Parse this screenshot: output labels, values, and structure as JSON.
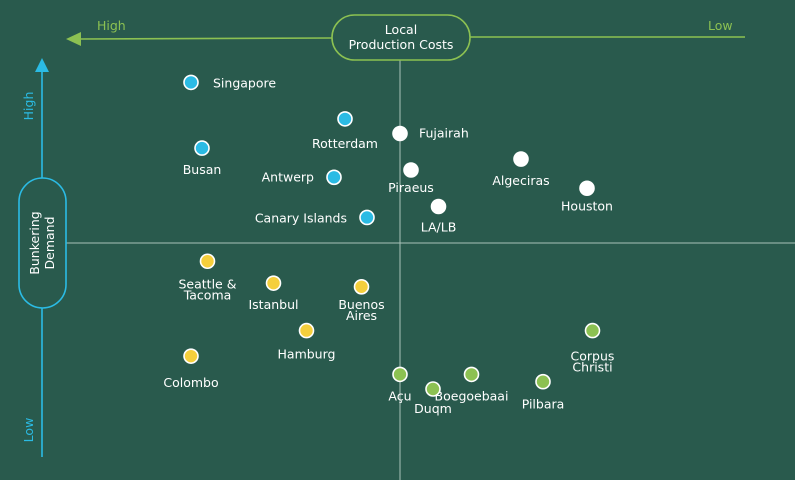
{
  "chart_data": {
    "type": "scatter",
    "title": "",
    "x_axis": {
      "label_lines": [
        "Local",
        "Production Costs"
      ],
      "left_end": "High",
      "right_end": "Low",
      "direction": "decreasing-to-the-right",
      "range": [
        0,
        10
      ]
    },
    "y_axis": {
      "label_lines": [
        "Bunkering",
        "Demand"
      ],
      "top_end": "High",
      "bottom_end": "Low",
      "range": [
        0,
        10
      ]
    },
    "quadrant_lines": "center",
    "legend": "none",
    "series": [
      {
        "color": "#2bbbe4",
        "points": [
          {
            "label": "Singapore",
            "x": 1.2,
            "y": 9.4
          },
          {
            "label": "Rotterdam",
            "x": 4.0,
            "y": 8.4
          },
          {
            "label": "Busan",
            "x": 1.4,
            "y": 7.6
          },
          {
            "label": "Antwerp",
            "x": 3.8,
            "y": 6.8
          },
          {
            "label": "Canary Islands",
            "x": 4.4,
            "y": 5.7
          }
        ]
      },
      {
        "color": "#ffffff",
        "points": [
          {
            "label": "Fujairah",
            "x": 5.0,
            "y": 8.0
          },
          {
            "label": "Algeciras",
            "x": 7.2,
            "y": 7.3
          },
          {
            "label": "Piraeus",
            "x": 5.2,
            "y": 7.0
          },
          {
            "label": "Houston",
            "x": 8.4,
            "y": 6.5
          },
          {
            "label": "LA/LB",
            "x": 5.7,
            "y": 6.0
          }
        ]
      },
      {
        "color": "#f5cf3c",
        "points": [
          {
            "label": "Seattle & Tacoma",
            "x": 1.5,
            "y": 4.5
          },
          {
            "label": "Istanbul",
            "x": 2.7,
            "y": 3.9
          },
          {
            "label": "Buenos Aires",
            "x": 4.3,
            "y": 3.8
          },
          {
            "label": "Hamburg",
            "x": 3.3,
            "y": 2.6
          },
          {
            "label": "Colombo",
            "x": 1.2,
            "y": 1.9
          }
        ]
      },
      {
        "color": "#8cc152",
        "points": [
          {
            "label": "Corpus Christi",
            "x": 8.5,
            "y": 2.6
          },
          {
            "label": "Açu",
            "x": 5.0,
            "y": 1.4
          },
          {
            "label": "Boegoebaai",
            "x": 6.3,
            "y": 1.4
          },
          {
            "label": "Pilbara",
            "x": 7.6,
            "y": 1.2
          },
          {
            "label": "Duqm",
            "x": 5.6,
            "y": 1.0
          }
        ]
      }
    ]
  }
}
